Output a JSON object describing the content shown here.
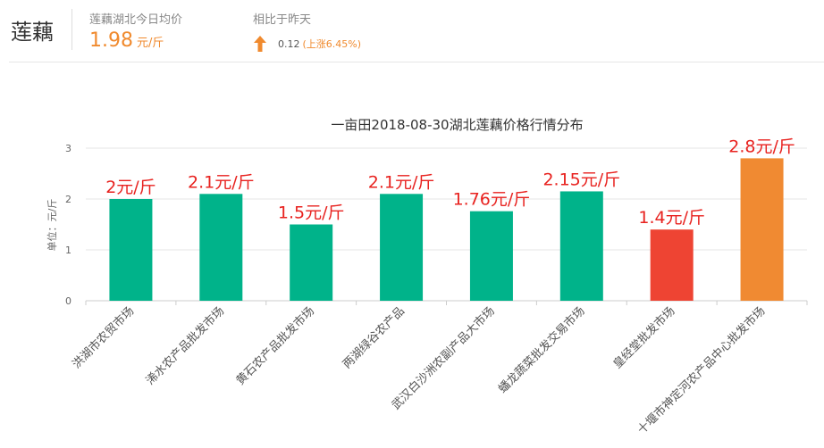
{
  "header": {
    "product": "莲藕",
    "avg_label": "莲藕湖北今日均价",
    "avg_value": "1.98",
    "avg_unit": "元/斤",
    "cmp_label": "相比于昨天",
    "cmp_change": "0.12",
    "cmp_pct": "(上涨6.45%)",
    "cmp_icon": "arrow-up-icon",
    "accent_color": "#f08a2e"
  },
  "chart_data": {
    "type": "bar",
    "title": "一亩田2018-08-30湖北莲藕价格行情分布",
    "ylabel": "单位：元/斤",
    "ylim": [
      0,
      3
    ],
    "yticks": [
      0,
      1,
      2,
      3
    ],
    "categories": [
      "洪湖市农贸市场",
      "浠水农产品批发市场",
      "黄石农产品批发市场",
      "两湖绿谷农产品",
      "武汉白沙洲农副产品大市场",
      "蟠龙蔬菜批发交易市场",
      "皇经堂批发市场",
      "十堰市神定河农产品中心批发市场"
    ],
    "values": [
      2,
      2.1,
      1.5,
      2.1,
      1.76,
      2.15,
      1.4,
      2.8
    ],
    "data_labels": [
      "2元/斤",
      "2.1元/斤",
      "1.5元/斤",
      "2.1元/斤",
      "1.76元/斤",
      "2.15元/斤",
      "1.4元/斤",
      "2.8元/斤"
    ],
    "colors": [
      "#00b38a",
      "#00b38a",
      "#00b38a",
      "#00b38a",
      "#00b38a",
      "#00b38a",
      "#ee4433",
      "#f08a32"
    ],
    "grid": true
  }
}
